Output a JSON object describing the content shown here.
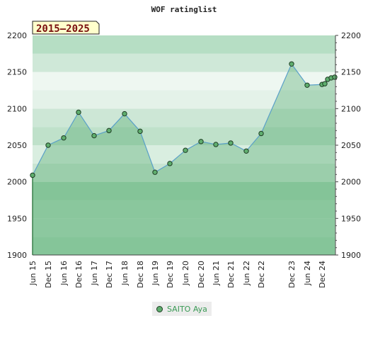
{
  "chart_data": {
    "type": "area",
    "title": "WOF ratinglist",
    "badge": "2015–2025",
    "ylim": [
      1900,
      2200
    ],
    "yticks": [
      1900,
      1950,
      2000,
      2050,
      2100,
      2150,
      2200
    ],
    "xtick_labels": [
      "Jun 15",
      "Dec 15",
      "Jun 16",
      "Dec 16",
      "Jun 17",
      "Dec 17",
      "Jun 18",
      "Dec 18",
      "Jun 19",
      "Dec 19",
      "Jun 20",
      "Dec 20",
      "Jun 21",
      "Dec 21",
      "Jun 22",
      "Dec 22",
      "Dec 23",
      "Jun 24",
      "Dec 24"
    ],
    "legend": {
      "position": "bottom-center"
    },
    "series": [
      {
        "name": "SAITO Aya",
        "color": "#5fae6e",
        "line_color": "#5aa0c8",
        "values": [
          2009,
          2050,
          2060,
          2095,
          2063,
          2070,
          2093,
          2069,
          2013,
          2025,
          2043,
          2055,
          2051,
          2053,
          2042,
          2066,
          2161,
          2132,
          2133,
          2134,
          2140,
          2142,
          2143
        ]
      }
    ]
  }
}
